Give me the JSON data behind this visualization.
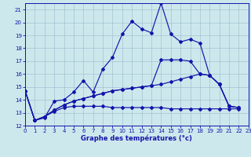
{
  "title": "Graphe des températures (°c)",
  "bg_color": "#cce8ec",
  "line_color": "#1414aa",
  "grid_color": "#99bbcc",
  "xlim": [
    0,
    23
  ],
  "ylim": [
    12,
    21.5
  ],
  "xticks": [
    0,
    1,
    2,
    3,
    4,
    5,
    6,
    7,
    8,
    9,
    10,
    11,
    12,
    13,
    14,
    15,
    16,
    17,
    18,
    19,
    20,
    21,
    22,
    23
  ],
  "yticks": [
    12,
    13,
    14,
    15,
    16,
    17,
    18,
    19,
    20,
    21
  ],
  "s1_x": [
    0,
    1,
    2,
    3,
    4,
    5,
    6,
    7,
    8,
    9,
    10,
    11,
    12,
    13,
    14,
    15,
    16,
    17,
    18,
    19,
    20,
    21,
    22
  ],
  "s1_y": [
    14.7,
    12.4,
    12.6,
    13.9,
    14.0,
    14.6,
    15.5,
    14.6,
    16.4,
    17.3,
    19.1,
    20.1,
    19.5,
    19.2,
    21.5,
    19.1,
    18.5,
    18.7,
    18.4,
    15.9,
    15.2,
    13.5,
    13.4
  ],
  "s2_x": [
    0,
    1,
    2,
    3,
    4,
    5,
    6,
    7,
    8,
    9,
    10,
    11,
    12,
    13,
    14,
    15,
    16,
    17,
    18,
    19,
    20,
    21,
    22
  ],
  "s2_y": [
    14.7,
    12.4,
    12.7,
    13.2,
    13.6,
    13.9,
    14.1,
    14.3,
    14.5,
    14.7,
    14.8,
    14.9,
    15.0,
    15.1,
    15.2,
    15.4,
    15.6,
    15.8,
    16.0,
    15.9,
    15.2,
    13.5,
    13.4
  ],
  "s3_x": [
    0,
    1,
    2,
    3,
    4,
    5,
    6,
    7,
    8,
    9,
    10,
    11,
    12,
    13,
    14,
    15,
    16,
    17,
    18,
    19,
    20,
    21,
    22
  ],
  "s3_y": [
    14.7,
    12.4,
    12.7,
    13.1,
    13.4,
    13.5,
    13.5,
    13.5,
    13.5,
    13.4,
    13.4,
    13.4,
    13.4,
    13.4,
    13.4,
    13.3,
    13.3,
    13.3,
    13.3,
    13.3,
    13.3,
    13.3,
    13.3
  ],
  "s4_x": [
    0,
    1,
    2,
    3,
    4,
    5,
    6,
    7,
    8,
    9,
    10,
    11,
    12,
    13,
    14,
    15,
    16,
    17,
    18,
    19,
    20,
    21,
    22
  ],
  "s4_y": [
    14.7,
    12.4,
    12.7,
    13.2,
    13.6,
    13.9,
    14.1,
    14.3,
    14.5,
    14.7,
    14.8,
    14.9,
    15.0,
    15.1,
    17.1,
    17.1,
    17.1,
    17.0,
    16.0,
    15.9,
    15.2,
    13.5,
    13.4
  ]
}
